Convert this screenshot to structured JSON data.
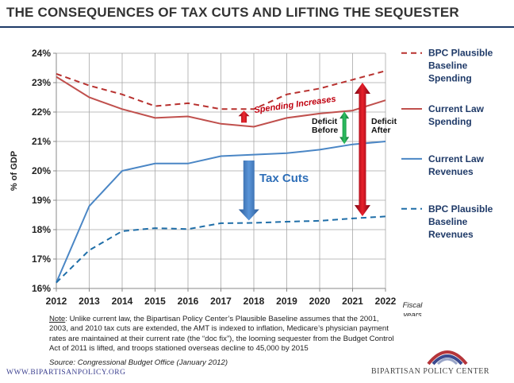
{
  "title": "THE CONSEQUENCES OF TAX CUTS AND LIFTING THE SEQUESTER",
  "chart_data": {
    "type": "line",
    "ylabel": "% of GDP",
    "xlabel": "Fiscal years",
    "ylim": [
      16,
      24
    ],
    "y_ticks": [
      "16%",
      "17%",
      "18%",
      "19%",
      "20%",
      "21%",
      "22%",
      "23%",
      "24%"
    ],
    "x": [
      "2012",
      "2013",
      "2014",
      "2015",
      "2016",
      "2017",
      "2018",
      "2019",
      "2020",
      "2021",
      "2022"
    ],
    "grid": true,
    "legend_placement": "right",
    "series": [
      {
        "name": "BPC Plausible Baseline Spending",
        "style": "dashed",
        "color": "#b8312f",
        "values": [
          23.3,
          22.9,
          22.6,
          22.2,
          22.3,
          22.1,
          22.1,
          22.6,
          22.8,
          23.1,
          23.4
        ]
      },
      {
        "name": "Current Law Spending",
        "style": "solid",
        "color": "#c0504d",
        "values": [
          23.2,
          22.5,
          22.1,
          21.8,
          21.85,
          21.6,
          21.5,
          21.8,
          21.95,
          22.05,
          22.4
        ]
      },
      {
        "name": "Current Law Revenues",
        "style": "solid",
        "color": "#4a86c5",
        "values": [
          16.2,
          18.8,
          20.0,
          20.25,
          20.25,
          20.5,
          20.55,
          20.6,
          20.72,
          20.9,
          21.0
        ]
      },
      {
        "name": "BPC Plausible Baseline Revenues",
        "style": "dashed",
        "color": "#1f6ea8",
        "values": [
          16.2,
          17.3,
          17.95,
          18.05,
          18.02,
          18.22,
          18.23,
          18.27,
          18.3,
          18.38,
          18.45
        ]
      }
    ],
    "annotations": {
      "spending_increases": "Spending Increases",
      "tax_cuts": "Tax Cuts",
      "deficit_before": "Deficit Before",
      "deficit_after": "Deficit After"
    }
  },
  "colors": {
    "navy": "#1f3a68",
    "arrow_red": "#c0001a",
    "arrow_green": "#1f9a4a",
    "arrow_blue": "#3670b6"
  },
  "note": {
    "label": "Note",
    "text": ": Unlike current law, the Bipartisan Policy Center’s Plausible Baseline assumes that the 2001, 2003, and 2010 tax cuts are extended, the AMT is indexed to inflation, Medicare’s physician payment rates are maintained at their current rate (the “doc fix”), the looming sequester from the Budget Control Act of 2011 is lifted, and troops stationed overseas decline to 45,000 by 2015"
  },
  "source": "Source: Congressional Budget Office (January 2012)",
  "website": "WWW.BIPARTISANPOLICY.ORG",
  "org_name": "BIPARTISAN POLICY CENTER"
}
